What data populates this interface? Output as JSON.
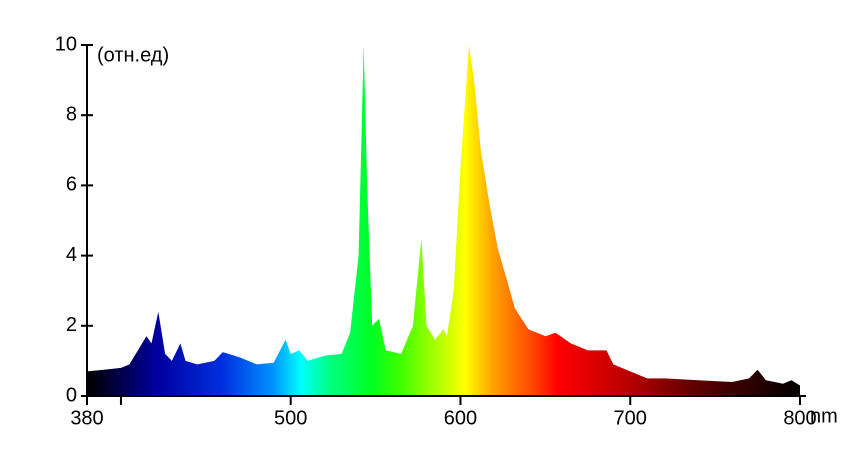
{
  "chart_data": {
    "type": "area",
    "x_unit": "nm",
    "y_label": "(отн.ед)",
    "x": [
      380,
      390,
      400,
      405,
      410,
      415,
      418,
      422,
      426,
      430,
      435,
      438,
      445,
      455,
      460,
      470,
      480,
      490,
      497,
      500,
      505,
      510,
      520,
      530,
      535,
      540,
      543,
      545,
      548,
      552,
      556,
      565,
      572,
      577,
      580,
      585,
      590,
      592,
      596,
      600,
      605,
      608,
      612,
      617,
      622,
      628,
      632,
      640,
      650,
      656,
      665,
      675,
      686,
      690,
      700,
      710,
      720,
      740,
      760,
      770,
      775,
      780,
      790,
      795,
      800
    ],
    "values": [
      0.7,
      0.75,
      0.8,
      0.9,
      1.3,
      1.7,
      1.5,
      2.4,
      1.2,
      1.0,
      1.5,
      1.0,
      0.9,
      1.0,
      1.25,
      1.1,
      0.9,
      0.95,
      1.6,
      1.2,
      1.3,
      1.0,
      1.15,
      1.2,
      1.8,
      4,
      10,
      6,
      2,
      2.2,
      1.3,
      1.2,
      2,
      4.5,
      2,
      1.6,
      1.9,
      1.7,
      3,
      6.5,
      10,
      9,
      7,
      5.5,
      4.2,
      3.2,
      2.5,
      1.9,
      1.7,
      1.8,
      1.5,
      1.3,
      1.3,
      0.9,
      0.7,
      0.5,
      0.5,
      0.45,
      0.4,
      0.5,
      0.75,
      0.45,
      0.35,
      0.45,
      0.3
    ],
    "xlim": [
      380,
      800
    ],
    "ylim": [
      0,
      10
    ],
    "xticks": [
      380,
      500,
      600,
      700,
      800
    ],
    "minor_xticks": [
      400
    ],
    "yticks": [
      0,
      2,
      4,
      6,
      8,
      10
    ]
  }
}
